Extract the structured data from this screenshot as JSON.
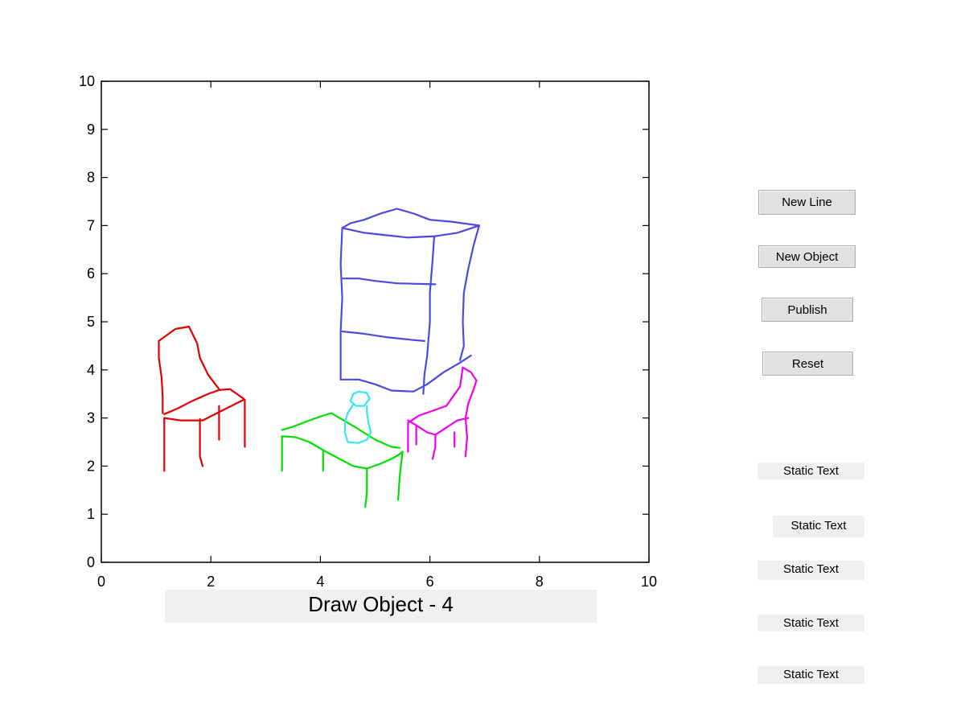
{
  "axes": {
    "x_ticks": [
      "0",
      "2",
      "4",
      "6",
      "8",
      "10"
    ],
    "y_ticks": [
      "0",
      "1",
      "2",
      "3",
      "4",
      "5",
      "6",
      "7",
      "8",
      "9",
      "10"
    ],
    "xlim": [
      0,
      10
    ],
    "ylim": [
      0,
      10
    ]
  },
  "status_text": "Draw Object - 4",
  "buttons": {
    "new_line": "New Line",
    "new_object": "New Object",
    "publish": "Publish",
    "reset": "Reset"
  },
  "static_texts": [
    "Static Text",
    "Static Text",
    "Static Text",
    "Static Text",
    "Static Text"
  ],
  "sketches": [
    {
      "name": "red-chair",
      "color": "#e00000",
      "strokes": [
        [
          [
            1.6,
            4.9
          ],
          [
            1.35,
            4.85
          ],
          [
            1.05,
            4.6
          ],
          [
            1.05,
            4.25
          ],
          [
            1.1,
            3.85
          ],
          [
            1.12,
            3.45
          ],
          [
            1.12,
            3.1
          ]
        ],
        [
          [
            1.6,
            4.9
          ],
          [
            1.75,
            4.55
          ],
          [
            1.8,
            4.25
          ],
          [
            1.95,
            3.9
          ],
          [
            2.05,
            3.75
          ],
          [
            2.15,
            3.6
          ]
        ],
        [
          [
            1.15,
            3.08
          ],
          [
            1.4,
            3.2
          ],
          [
            1.65,
            3.35
          ],
          [
            1.95,
            3.5
          ],
          [
            2.15,
            3.58
          ],
          [
            2.35,
            3.6
          ],
          [
            2.6,
            3.4
          ]
        ],
        [
          [
            1.15,
            3.0
          ],
          [
            1.45,
            2.95
          ],
          [
            1.85,
            2.95
          ]
        ],
        [
          [
            1.85,
            2.95
          ],
          [
            2.2,
            3.15
          ],
          [
            2.6,
            3.38
          ]
        ],
        [
          [
            1.15,
            3.0
          ],
          [
            1.15,
            1.9
          ]
        ],
        [
          [
            1.8,
            2.98
          ],
          [
            1.8,
            2.2
          ],
          [
            1.85,
            2.0
          ]
        ],
        [
          [
            2.15,
            3.25
          ],
          [
            2.15,
            2.55
          ]
        ],
        [
          [
            2.62,
            3.38
          ],
          [
            2.62,
            2.4
          ]
        ]
      ]
    },
    {
      "name": "blue-dresser",
      "color": "#4a4ae0",
      "strokes": [
        [
          [
            4.4,
            6.95
          ],
          [
            4.55,
            7.05
          ],
          [
            4.8,
            7.12
          ],
          [
            5.1,
            7.25
          ],
          [
            5.4,
            7.35
          ],
          [
            5.7,
            7.25
          ],
          [
            6.0,
            7.12
          ],
          [
            6.4,
            7.08
          ],
          [
            6.9,
            7.0
          ]
        ],
        [
          [
            4.4,
            6.95
          ],
          [
            4.8,
            6.85
          ],
          [
            5.2,
            6.8
          ],
          [
            5.6,
            6.75
          ],
          [
            6.1,
            6.78
          ],
          [
            6.5,
            6.85
          ],
          [
            6.9,
            7.0
          ]
        ],
        [
          [
            4.4,
            6.95
          ],
          [
            4.37,
            6.2
          ],
          [
            4.4,
            5.5
          ],
          [
            4.37,
            4.8
          ],
          [
            4.37,
            4.2
          ],
          [
            4.37,
            3.8
          ]
        ],
        [
          [
            4.37,
            3.8
          ],
          [
            4.7,
            3.8
          ],
          [
            5.0,
            3.7
          ],
          [
            5.3,
            3.57
          ],
          [
            5.7,
            3.55
          ]
        ],
        [
          [
            4.4,
            5.9
          ],
          [
            4.7,
            5.9
          ],
          [
            5.0,
            5.85
          ],
          [
            5.4,
            5.8
          ],
          [
            6.1,
            5.78
          ]
        ],
        [
          [
            4.4,
            4.8
          ],
          [
            4.8,
            4.75
          ],
          [
            5.2,
            4.68
          ],
          [
            5.7,
            4.62
          ],
          [
            5.9,
            4.6
          ]
        ],
        [
          [
            6.08,
            6.78
          ],
          [
            6.05,
            6.3
          ],
          [
            6.0,
            5.6
          ],
          [
            6.0,
            5.0
          ],
          [
            5.95,
            4.3
          ],
          [
            5.9,
            3.9
          ],
          [
            5.88,
            3.5
          ]
        ],
        [
          [
            5.7,
            3.55
          ],
          [
            5.95,
            3.7
          ],
          [
            6.25,
            3.95
          ],
          [
            6.55,
            4.15
          ],
          [
            6.75,
            4.3
          ]
        ],
        [
          [
            6.9,
            7.0
          ],
          [
            6.8,
            6.6
          ],
          [
            6.7,
            6.1
          ],
          [
            6.62,
            5.6
          ],
          [
            6.6,
            5.0
          ],
          [
            6.62,
            4.5
          ],
          [
            6.55,
            4.2
          ]
        ]
      ]
    },
    {
      "name": "magenta-chair",
      "color": "#ee00ee",
      "strokes": [
        [
          [
            5.6,
            2.3
          ],
          [
            5.6,
            2.9
          ],
          [
            5.8,
            3.05
          ],
          [
            6.05,
            3.15
          ],
          [
            6.3,
            3.25
          ],
          [
            6.55,
            3.65
          ],
          [
            6.6,
            4.05
          ]
        ],
        [
          [
            6.6,
            4.05
          ],
          [
            6.75,
            3.95
          ],
          [
            6.85,
            3.78
          ],
          [
            6.8,
            3.6
          ],
          [
            6.7,
            3.3
          ],
          [
            6.65,
            3.0
          ],
          [
            6.68,
            2.6
          ],
          [
            6.65,
            2.2
          ]
        ],
        [
          [
            5.6,
            2.95
          ],
          [
            5.75,
            2.85
          ],
          [
            5.95,
            2.7
          ],
          [
            6.1,
            2.65
          ],
          [
            6.3,
            2.8
          ],
          [
            6.5,
            2.95
          ],
          [
            6.7,
            3.0
          ]
        ],
        [
          [
            6.1,
            2.65
          ],
          [
            6.1,
            2.4
          ],
          [
            6.05,
            2.15
          ]
        ],
        [
          [
            6.45,
            2.7
          ],
          [
            6.45,
            2.4
          ]
        ],
        [
          [
            5.75,
            2.85
          ],
          [
            5.75,
            2.45
          ]
        ]
      ]
    },
    {
      "name": "green-table",
      "color": "#00e000",
      "strokes": [
        [
          [
            3.3,
            2.75
          ],
          [
            3.5,
            2.82
          ],
          [
            3.8,
            2.95
          ],
          [
            4.05,
            3.05
          ],
          [
            4.2,
            3.1
          ],
          [
            4.35,
            3.0
          ]
        ],
        [
          [
            3.3,
            2.62
          ],
          [
            3.55,
            2.6
          ],
          [
            3.8,
            2.5
          ],
          [
            4.1,
            2.3
          ],
          [
            4.35,
            2.15
          ],
          [
            4.6,
            2.0
          ],
          [
            4.85,
            1.95
          ],
          [
            5.1,
            2.05
          ],
          [
            5.3,
            2.15
          ],
          [
            5.45,
            2.25
          ],
          [
            5.5,
            2.3
          ]
        ],
        [
          [
            4.35,
            3.0
          ],
          [
            4.65,
            2.8
          ],
          [
            5.0,
            2.55
          ],
          [
            5.3,
            2.4
          ],
          [
            5.45,
            2.38
          ]
        ],
        [
          [
            3.3,
            2.62
          ],
          [
            3.3,
            1.9
          ]
        ],
        [
          [
            4.05,
            2.3
          ],
          [
            4.05,
            1.9
          ]
        ],
        [
          [
            4.85,
            1.95
          ],
          [
            4.85,
            1.45
          ],
          [
            4.82,
            1.15
          ]
        ],
        [
          [
            5.5,
            2.3
          ],
          [
            5.45,
            1.8
          ],
          [
            5.42,
            1.3
          ]
        ]
      ]
    },
    {
      "name": "cyan-vase",
      "color": "#33e8ee",
      "strokes": [
        [
          [
            4.6,
            3.5
          ],
          [
            4.7,
            3.55
          ],
          [
            4.85,
            3.52
          ],
          [
            4.9,
            3.4
          ],
          [
            4.8,
            3.25
          ],
          [
            4.65,
            3.25
          ],
          [
            4.55,
            3.35
          ],
          [
            4.6,
            3.5
          ]
        ],
        [
          [
            4.6,
            3.28
          ],
          [
            4.5,
            3.1
          ],
          [
            4.45,
            2.9
          ],
          [
            4.45,
            2.7
          ],
          [
            4.5,
            2.5
          ],
          [
            4.7,
            2.48
          ],
          [
            4.85,
            2.55
          ],
          [
            4.92,
            2.7
          ],
          [
            4.88,
            2.9
          ],
          [
            4.85,
            3.1
          ],
          [
            4.85,
            3.25
          ]
        ]
      ]
    }
  ]
}
